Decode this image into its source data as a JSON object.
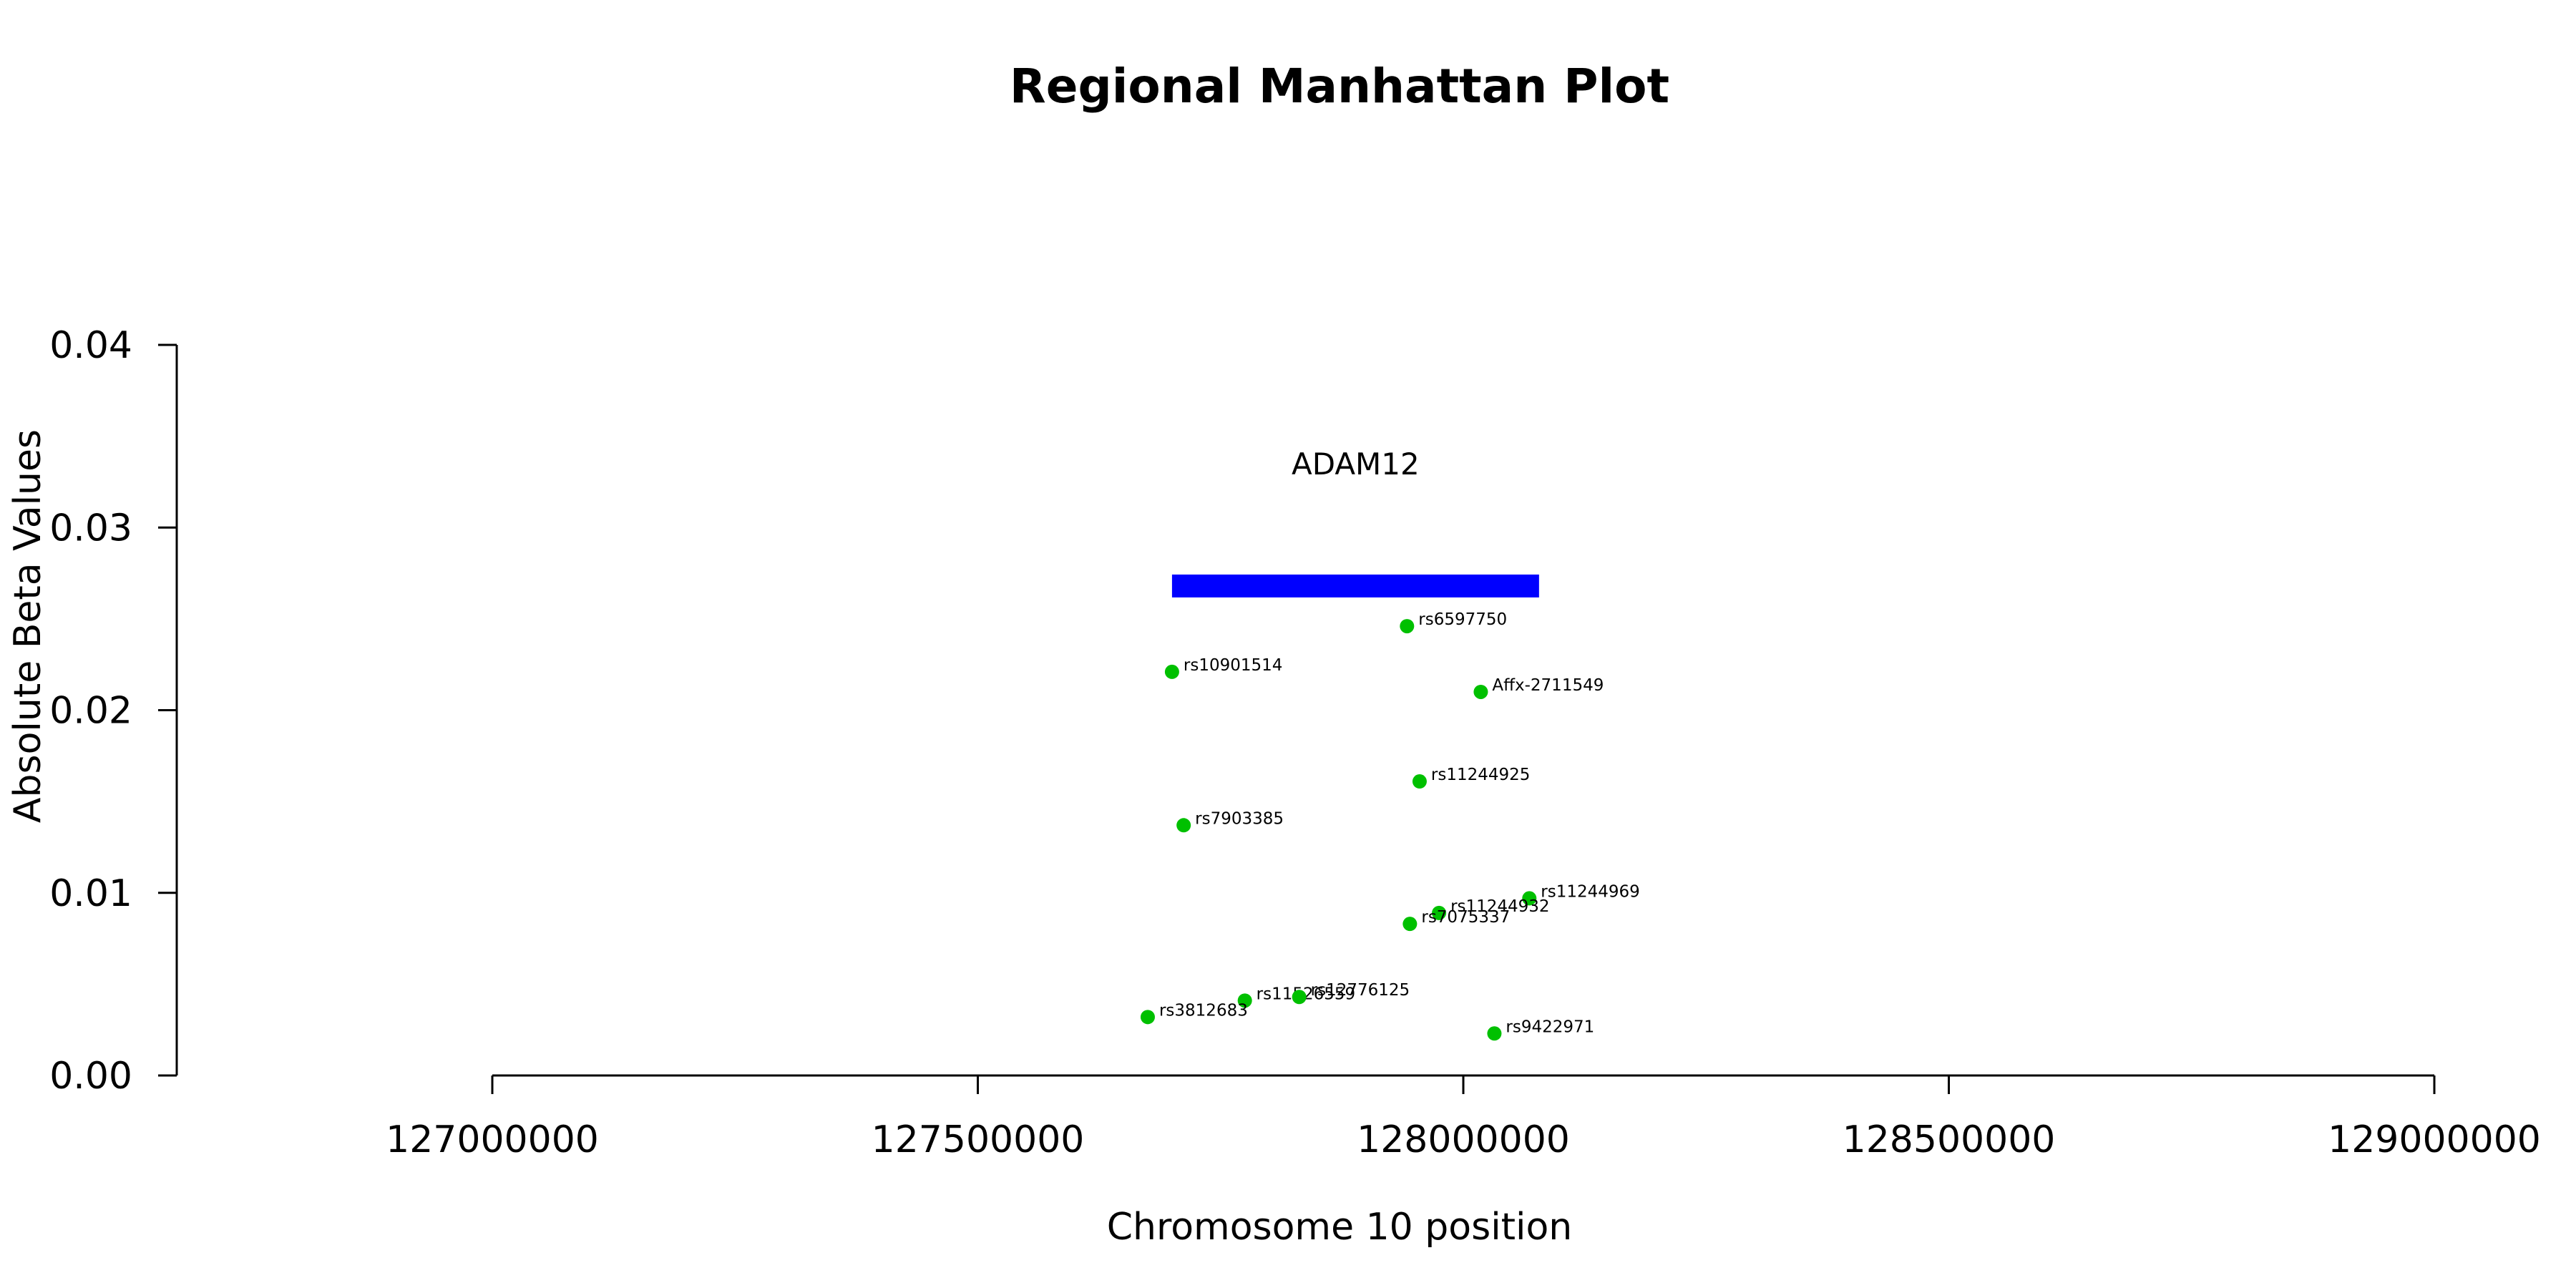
{
  "chart_data": {
    "type": "scatter",
    "title": "Regional Manhattan Plot",
    "xlabel": "Chromosome 10 position",
    "ylabel": "Absolute Beta Values",
    "xlim": [
      127000000,
      129000000
    ],
    "ylim": [
      0,
      0.04
    ],
    "x_ticks": [
      127000000,
      127500000,
      128000000,
      128500000,
      129000000
    ],
    "x_tick_labels": [
      "127000000",
      "127500000",
      "128000000",
      "128500000",
      "129000000"
    ],
    "y_ticks": [
      0,
      0.01,
      0.02,
      0.03,
      0.04
    ],
    "y_tick_labels": [
      "0.00",
      "0.01",
      "0.02",
      "0.03",
      "0.04"
    ],
    "grid": false,
    "point_color": "#00c000",
    "gene": {
      "name": "ADAM12",
      "start": 127700000,
      "end": 128078000,
      "y": 0.0268,
      "color": "#0000ff"
    },
    "points": [
      {
        "label": "rs6597750",
        "x": 127942000,
        "y": 0.0246
      },
      {
        "label": "rs10901514",
        "x": 127700000,
        "y": 0.0221
      },
      {
        "label": "Affx-2711549",
        "x": 128018000,
        "y": 0.021
      },
      {
        "label": "rs11244925",
        "x": 127955000,
        "y": 0.0161
      },
      {
        "label": "rs7903385",
        "x": 127712000,
        "y": 0.0137
      },
      {
        "label": "rs11244969",
        "x": 128068000,
        "y": 0.0097
      },
      {
        "label": "rs11244932",
        "x": 127975000,
        "y": 0.0089
      },
      {
        "label": "rs7075337",
        "x": 127945000,
        "y": 0.0083
      },
      {
        "label": "rs11526559",
        "x": 127775000,
        "y": 0.0041
      },
      {
        "label": "rs12776125",
        "x": 127831000,
        "y": 0.0043
      },
      {
        "label": "rs3812683",
        "x": 127675000,
        "y": 0.0032
      },
      {
        "label": "rs9422971",
        "x": 128032000,
        "y": 0.0023
      }
    ]
  }
}
